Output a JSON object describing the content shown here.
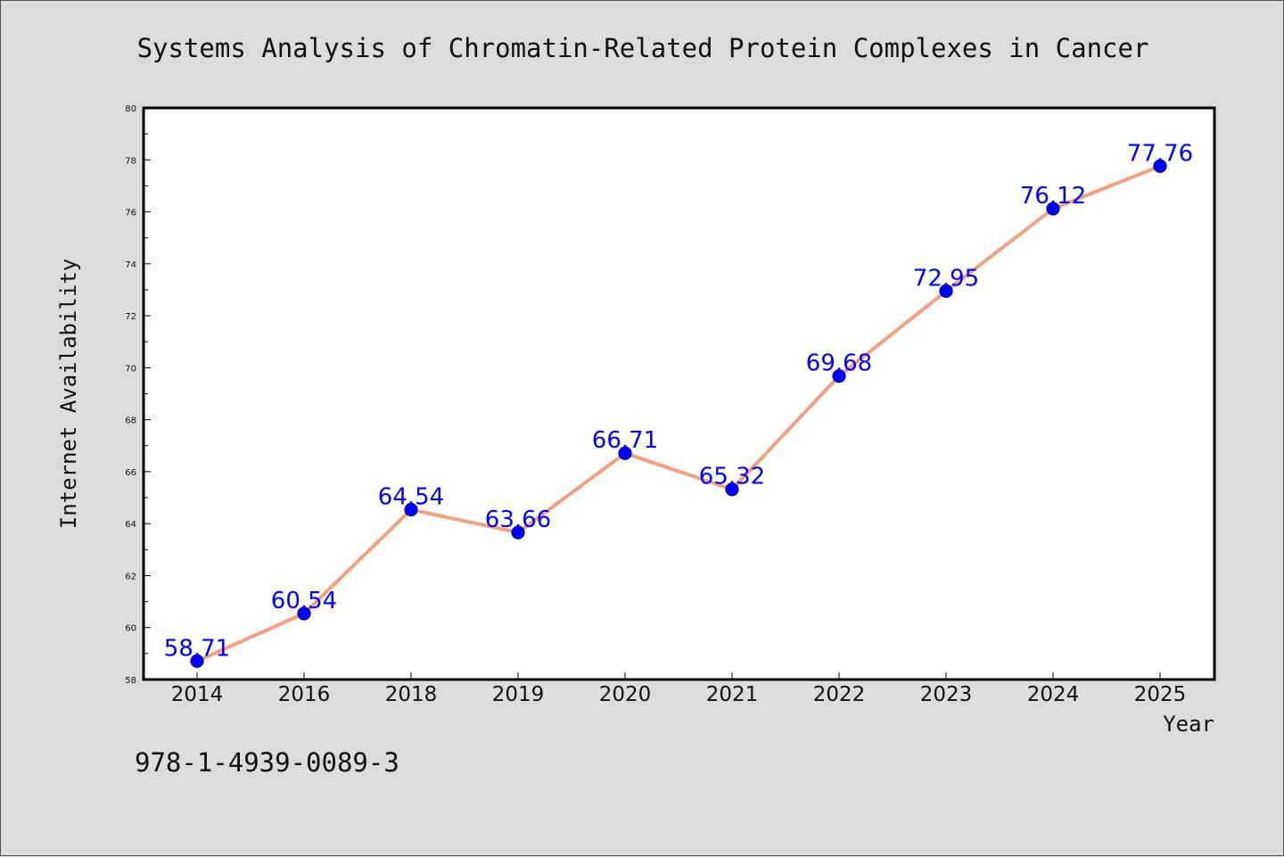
{
  "chart_data": {
    "type": "line",
    "title": "Systems Analysis of Chromatin-Related Protein Complexes in Cancer",
    "xlabel": "Year",
    "ylabel": "Internet Availability",
    "categories": [
      "2014",
      "2016",
      "2018",
      "2019",
      "2020",
      "2021",
      "2022",
      "2023",
      "2024",
      "2025"
    ],
    "values": [
      58.71,
      60.54,
      64.54,
      63.66,
      66.71,
      65.32,
      69.68,
      72.95,
      76.12,
      77.76
    ],
    "data_labels": [
      "58.71",
      "60.54",
      "64.54",
      "63.66",
      "66.71",
      "65.32",
      "69.68",
      "72.95",
      "76.12",
      "77.76"
    ],
    "ylim": [
      58,
      80
    ],
    "yticks": [
      "58",
      "60",
      "62",
      "64",
      "66",
      "68",
      "70",
      "72",
      "74",
      "76",
      "78",
      "80"
    ],
    "grid": false,
    "colors": {
      "line": "#f4a07e",
      "marker": "#0000ff",
      "marker_edge": "#00008b",
      "data_label": "#0000ff",
      "plot_background": "#ffffff",
      "figure_background": "#dcdcdc"
    }
  },
  "footer": {
    "isbn": "978-1-4939-0089-3"
  }
}
